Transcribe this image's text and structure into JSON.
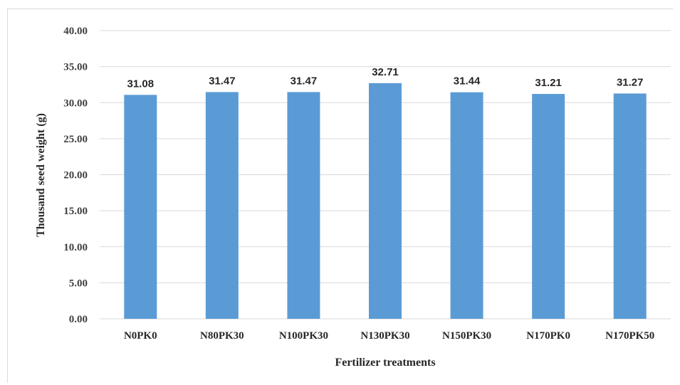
{
  "chart_data": {
    "type": "bar",
    "title": "",
    "xlabel": "Fertilizer treatments",
    "ylabel": "Thousand seed weight (g)",
    "categories": [
      "N0PK0",
      "N80PK30",
      "N100PK30",
      "N130PK30",
      "N150PK30",
      "N170PK0",
      "N170PK50"
    ],
    "values": [
      31.08,
      31.47,
      31.47,
      32.71,
      31.44,
      31.21,
      31.27
    ],
    "value_labels": [
      "31.08",
      "31.47",
      "31.47",
      "32.71",
      "31.44",
      "31.21",
      "31.27"
    ],
    "ylim": [
      0,
      40
    ],
    "yticks": [
      "0.00",
      "5.00",
      "10.00",
      "15.00",
      "20.00",
      "25.00",
      "30.00",
      "35.00",
      "40.00"
    ],
    "grid": true,
    "legend": "none",
    "bar_color": "#5b9bd5",
    "grid_color": "#d9d9d9"
  }
}
